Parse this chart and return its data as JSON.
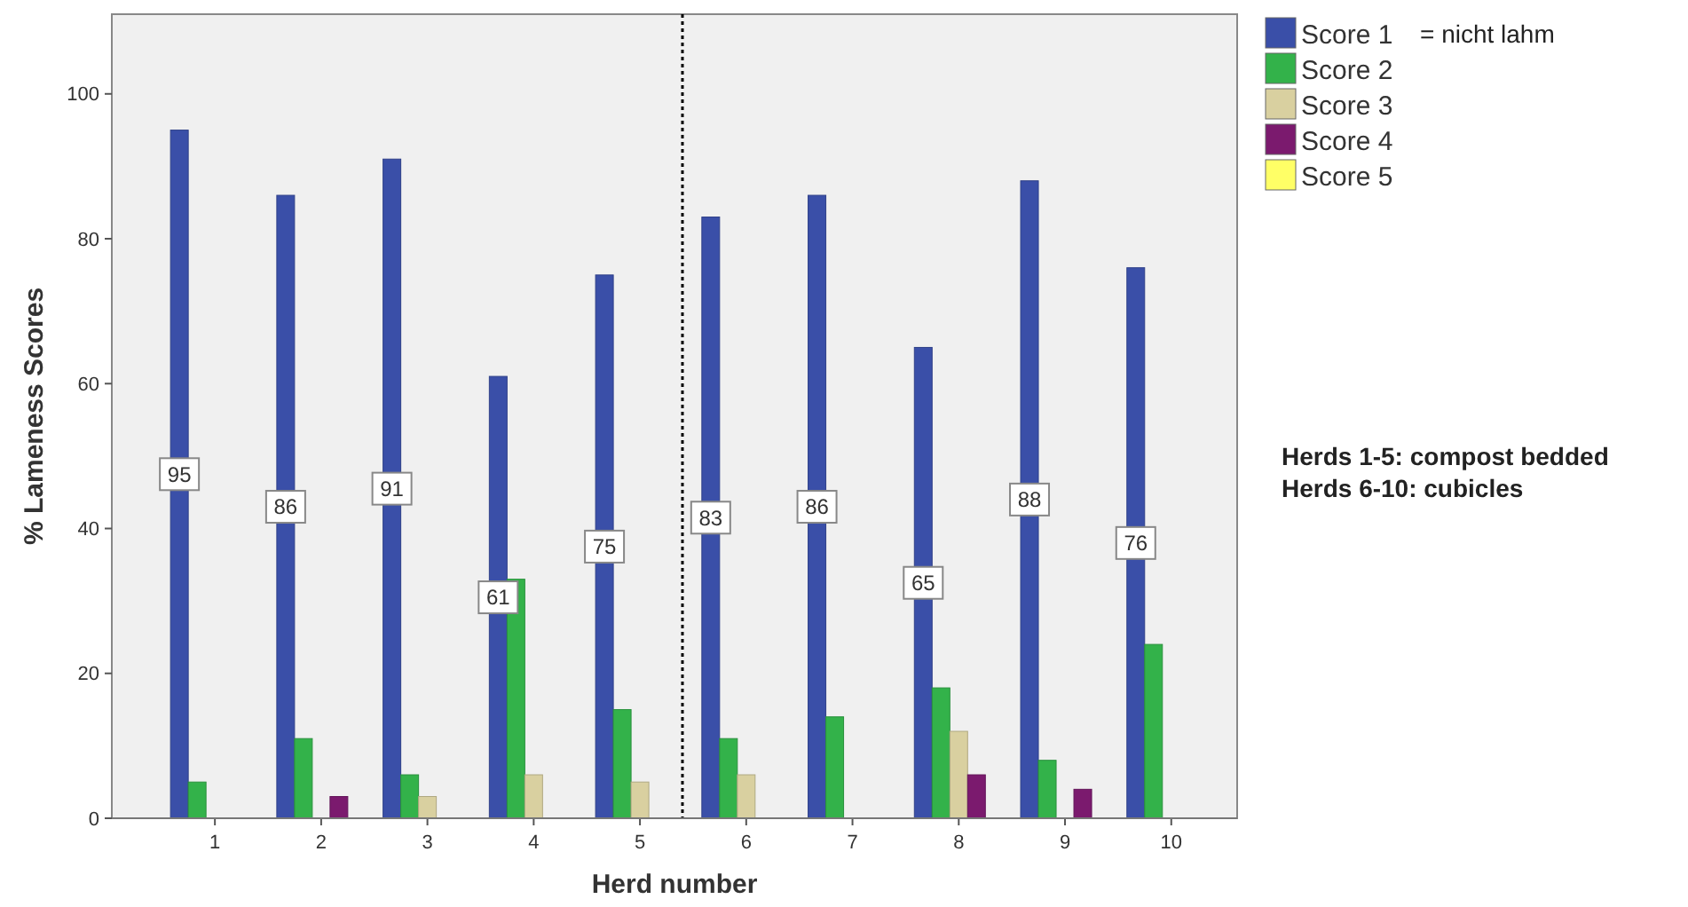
{
  "chart_data": {
    "type": "bar",
    "xlabel": "Herd number",
    "ylabel": "% Lameness Scores",
    "x": [
      1,
      2,
      3,
      4,
      5,
      6,
      7,
      8,
      9,
      10
    ],
    "xlim": [
      0.03,
      10.62
    ],
    "xticks": [
      1,
      2,
      3,
      4,
      5,
      6,
      7,
      8,
      9,
      10
    ],
    "ylim": [
      0,
      111
    ],
    "yticks": [
      0,
      20,
      40,
      60,
      80,
      100
    ],
    "series": [
      {
        "name": "Score 1",
        "color": "#3a4fa8",
        "values": [
          95,
          86,
          91,
          61,
          75,
          83,
          86,
          65,
          88,
          76
        ],
        "value_labels": [
          "95",
          "86",
          "91",
          "61",
          "75",
          "83",
          "86",
          "65",
          "88",
          "76"
        ]
      },
      {
        "name": "Score 2",
        "color": "#33b24a",
        "values": [
          5,
          11,
          6,
          33,
          15,
          11,
          14,
          18,
          8,
          24
        ]
      },
      {
        "name": "Score 3",
        "color": "#d9d0a0",
        "values": [
          0,
          0,
          3,
          6,
          5,
          6,
          0,
          12,
          0,
          0
        ]
      },
      {
        "name": "Score 4",
        "color": "#7b1a6e",
        "values": [
          0,
          3,
          0,
          0,
          0,
          0,
          0,
          6,
          4,
          0
        ]
      },
      {
        "name": "Score 5",
        "color": "#ffff66",
        "values": [
          0,
          0,
          0,
          0,
          0,
          0,
          0,
          0,
          0,
          0
        ]
      }
    ],
    "ref_lines": [
      {
        "axis": "x",
        "value": 5.4,
        "line_style": "dotted",
        "color": "#000000"
      }
    ],
    "annotations": [
      "= nicht lahm",
      "Herds 1-5: compost bedded",
      "Herds 6-10: cubicles"
    ],
    "legend": "top right",
    "grid": false
  }
}
